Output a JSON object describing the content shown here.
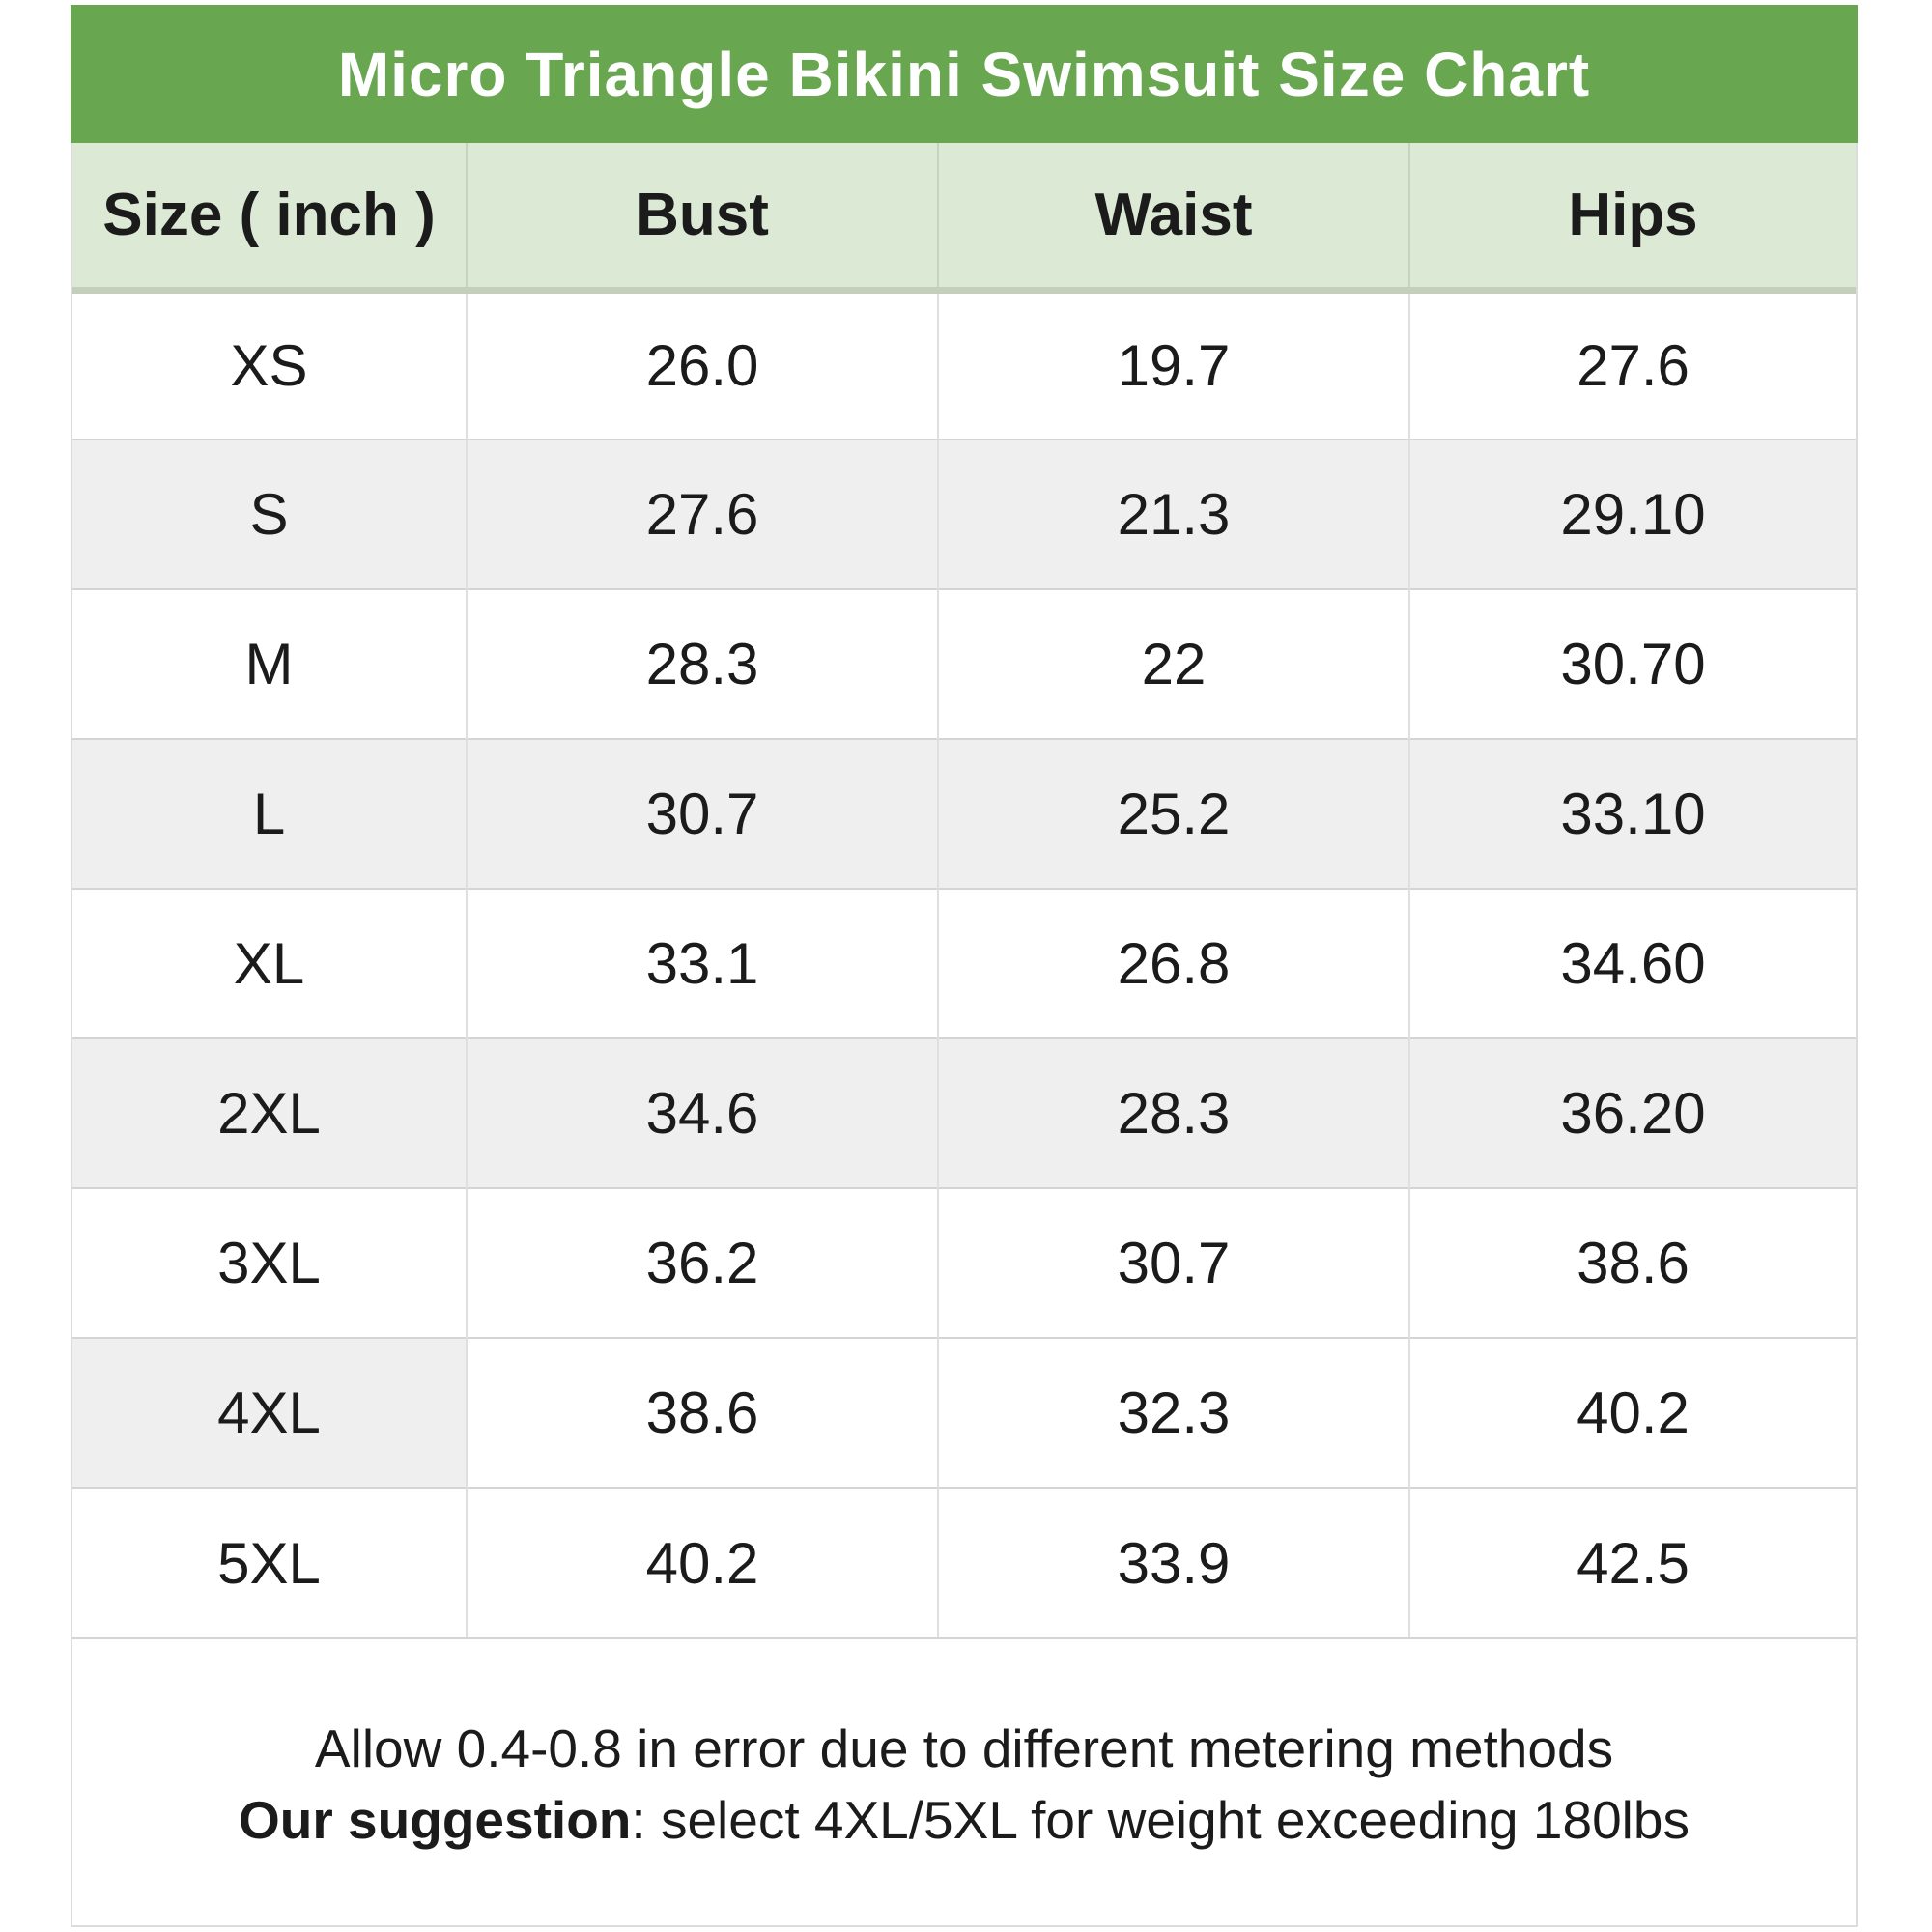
{
  "title": "Micro Triangle Bikini Swimsuit Size Chart",
  "header": {
    "size": "Size ( inch )",
    "bust": "Bust",
    "waist": "Waist",
    "hips": "Hips"
  },
  "rows": [
    {
      "size": "XS",
      "bust": "26.0",
      "waist": "19.7",
      "hips": "27.6"
    },
    {
      "size": "S",
      "bust": "27.6",
      "waist": "21.3",
      "hips": "29.10"
    },
    {
      "size": "M",
      "bust": "28.3",
      "waist": "22",
      "hips": "30.70"
    },
    {
      "size": "L",
      "bust": "30.7",
      "waist": "25.2",
      "hips": "33.10"
    },
    {
      "size": "XL",
      "bust": "33.1",
      "waist": "26.8",
      "hips": "34.60"
    },
    {
      "size": "2XL",
      "bust": "34.6",
      "waist": "28.3",
      "hips": "36.20"
    },
    {
      "size": "3XL",
      "bust": "36.2",
      "waist": "30.7",
      "hips": "38.6"
    },
    {
      "size": "4XL",
      "bust": "38.6",
      "waist": "32.3",
      "hips": "40.2"
    },
    {
      "size": "5XL",
      "bust": "40.2",
      "waist": "33.9",
      "hips": "42.5"
    }
  ],
  "footer": {
    "line1": "Allow 0.4-0.8 in error due to different metering methods",
    "line2_bold": "Our suggestion",
    "line2_rest": ": select 4XL/5XL for weight exceeding 180lbs"
  },
  "colors": {
    "title_bar": "#68a74f",
    "header_row": "#dce9d5",
    "shaded_row": "#efefef",
    "border": "#d4d4d4"
  },
  "chart_data": {
    "type": "table",
    "title": "Micro Triangle Bikini Swimsuit Size Chart",
    "unit": "inch",
    "columns": [
      "Size ( inch )",
      "Bust",
      "Waist",
      "Hips"
    ],
    "rows": [
      [
        "XS",
        "26.0",
        "19.7",
        "27.6"
      ],
      [
        "S",
        "27.6",
        "21.3",
        "29.10"
      ],
      [
        "M",
        "28.3",
        "22",
        "30.70"
      ],
      [
        "L",
        "30.7",
        "25.2",
        "33.10"
      ],
      [
        "XL",
        "33.1",
        "26.8",
        "34.60"
      ],
      [
        "2XL",
        "34.6",
        "28.3",
        "36.20"
      ],
      [
        "3XL",
        "36.2",
        "30.7",
        "38.6"
      ],
      [
        "4XL",
        "38.6",
        "32.3",
        "40.2"
      ],
      [
        "5XL",
        "40.2",
        "33.9",
        "42.5"
      ]
    ],
    "notes": [
      "Allow 0.4-0.8 in error due to different metering methods",
      "Our suggestion: select 4XL/5XL for weight exceeding 180lbs"
    ]
  }
}
